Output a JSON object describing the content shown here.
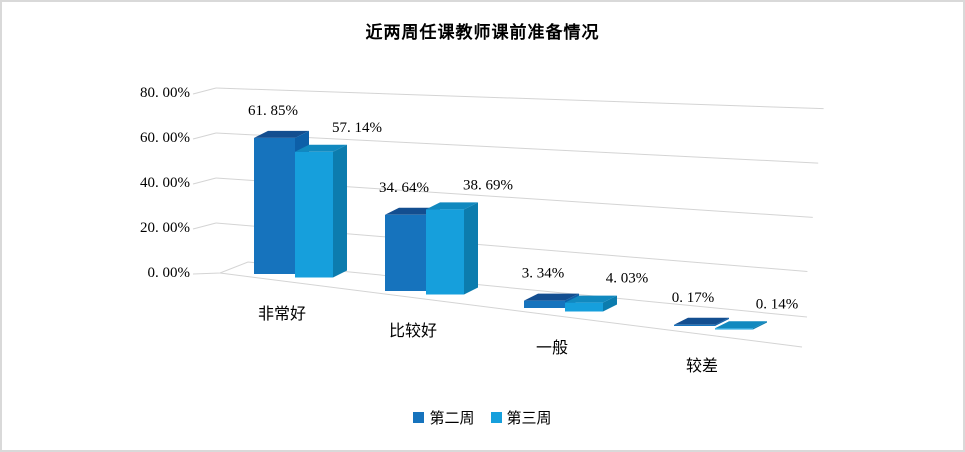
{
  "title": "近两周任课教师课前准备情况",
  "chart_data": {
    "type": "bar",
    "subtype": "3d-clustered-column",
    "title": "近两周任课教师课前准备情况",
    "categories": [
      "非常好",
      "比较好",
      "一般",
      "较差"
    ],
    "series": [
      {
        "name": "第二周",
        "values": [
          61.85,
          34.64,
          3.34,
          0.17
        ],
        "display_labels": [
          "61. 85%",
          "34. 64%",
          "3. 34%",
          "0. 17%"
        ],
        "color_front": "#1673BD",
        "color_top": "#134E90",
        "color_side": "#0D5FA8"
      },
      {
        "name": "第三周",
        "values": [
          57.14,
          38.69,
          4.03,
          0.14
        ],
        "display_labels": [
          "57. 14%",
          "38. 69%",
          "4. 03%",
          "0. 14%"
        ],
        "color_front": "#169FDC",
        "color_top": "#1189BF",
        "color_side": "#0C7CAE"
      }
    ],
    "y_axis": {
      "min": 0,
      "max": 80,
      "step": 20,
      "format": "percent",
      "tick_labels_bottom_up": [
        "0. 00%",
        "20. 00%",
        "40. 00%",
        "60. 00%",
        "80. 00%"
      ]
    },
    "legend": {
      "position": "bottom",
      "entries": [
        "第二周",
        "第三周"
      ]
    },
    "grid": true,
    "gridline_color": "#D4D4D4",
    "background": "#FFFFFF",
    "border_color": "#D9D9D9"
  }
}
